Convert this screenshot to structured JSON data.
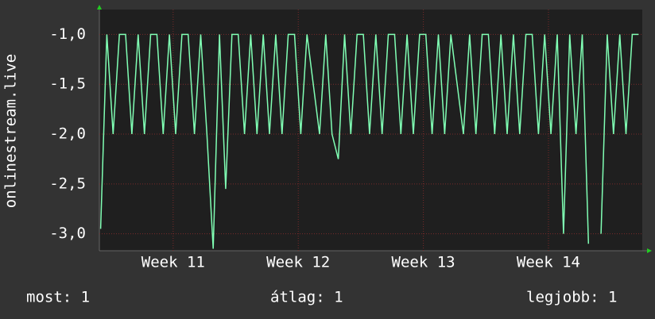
{
  "chart_data": {
    "type": "line",
    "y_label": "onlinestream.live",
    "x": [
      10.42,
      10.47,
      10.52,
      10.57,
      10.62,
      10.67,
      10.72,
      10.77,
      10.82,
      10.87,
      10.92,
      10.97,
      11.02,
      11.07,
      11.12,
      11.17,
      11.22,
      11.27,
      11.32,
      11.37,
      11.42,
      11.47,
      11.52,
      11.57,
      11.62,
      11.67,
      11.72,
      11.77,
      11.82,
      11.87,
      11.92,
      11.97,
      12.02,
      12.07,
      12.12,
      12.17,
      12.22,
      12.27,
      12.32,
      12.37,
      12.42,
      12.47,
      12.52,
      12.57,
      12.62,
      12.67,
      12.72,
      12.77,
      12.82,
      12.87,
      12.92,
      12.97,
      13.02,
      13.07,
      13.12,
      13.17,
      13.22,
      13.27,
      13.32,
      13.37,
      13.42,
      13.47,
      13.52,
      13.57,
      13.62,
      13.67,
      13.72,
      13.77,
      13.82,
      13.87,
      13.92,
      13.97,
      14.02,
      14.07,
      14.12,
      14.17,
      14.22,
      14.27,
      14.32,
      14.37,
      14.42,
      14.47,
      14.52,
      14.57,
      14.62,
      14.67,
      14.72
    ],
    "series": [
      {
        "color": "#80ffb4",
        "values": [
          -2.95,
          -1.0,
          -2.0,
          -1.0,
          -1.0,
          -2.0,
          -1.0,
          -2.0,
          -1.0,
          -1.0,
          -2.0,
          -1.0,
          -2.0,
          -1.0,
          -1.0,
          -2.0,
          -1.0,
          -2.0,
          -3.15,
          -1.0,
          -2.55,
          -1.0,
          -1.0,
          -2.0,
          -1.0,
          -2.0,
          -1.0,
          -2.0,
          -1.0,
          -2.0,
          -1.0,
          -1.0,
          -2.0,
          -1.0,
          -1.5,
          -2.0,
          -1.0,
          -2.0,
          -2.25,
          -1.0,
          -2.0,
          -1.0,
          -1.0,
          -2.0,
          -1.0,
          -2.0,
          -1.0,
          -1.0,
          -2.0,
          -1.0,
          -2.0,
          -1.0,
          -1.0,
          -2.0,
          -1.0,
          -2.0,
          -1.0,
          -1.5,
          -2.0,
          -1.0,
          -2.0,
          -1.0,
          -1.0,
          -2.0,
          -1.0,
          -2.0,
          -1.0,
          -2.0,
          -1.0,
          -1.0,
          -2.0,
          -1.0,
          -2.0,
          -1.0,
          -3.0,
          -1.0,
          -2.0,
          -1.0,
          -3.1,
          null,
          -3.0,
          -1.0,
          -2.0,
          -1.0,
          -2.0,
          -1.0,
          -1.0
        ]
      }
    ],
    "xlim": [
      10.41,
      14.75
    ],
    "xticks": [
      {
        "value": 11,
        "label": "Week 11"
      },
      {
        "value": 12,
        "label": "Week 12"
      },
      {
        "value": 13,
        "label": "Week 13"
      },
      {
        "value": 14,
        "label": "Week 14"
      }
    ],
    "ylim": [
      -3.17,
      -0.75
    ],
    "yticks": [
      {
        "value": -3.0,
        "label": "-3,0"
      },
      {
        "value": -2.5,
        "label": "-2,5"
      },
      {
        "value": -2.0,
        "label": "-2,0"
      },
      {
        "value": -1.5,
        "label": "-1,5"
      },
      {
        "value": -1.0,
        "label": "-1,0"
      }
    ],
    "grid": true,
    "footer": [
      "most: 1",
      "átlag: 1",
      "legjobb: 1"
    ]
  }
}
